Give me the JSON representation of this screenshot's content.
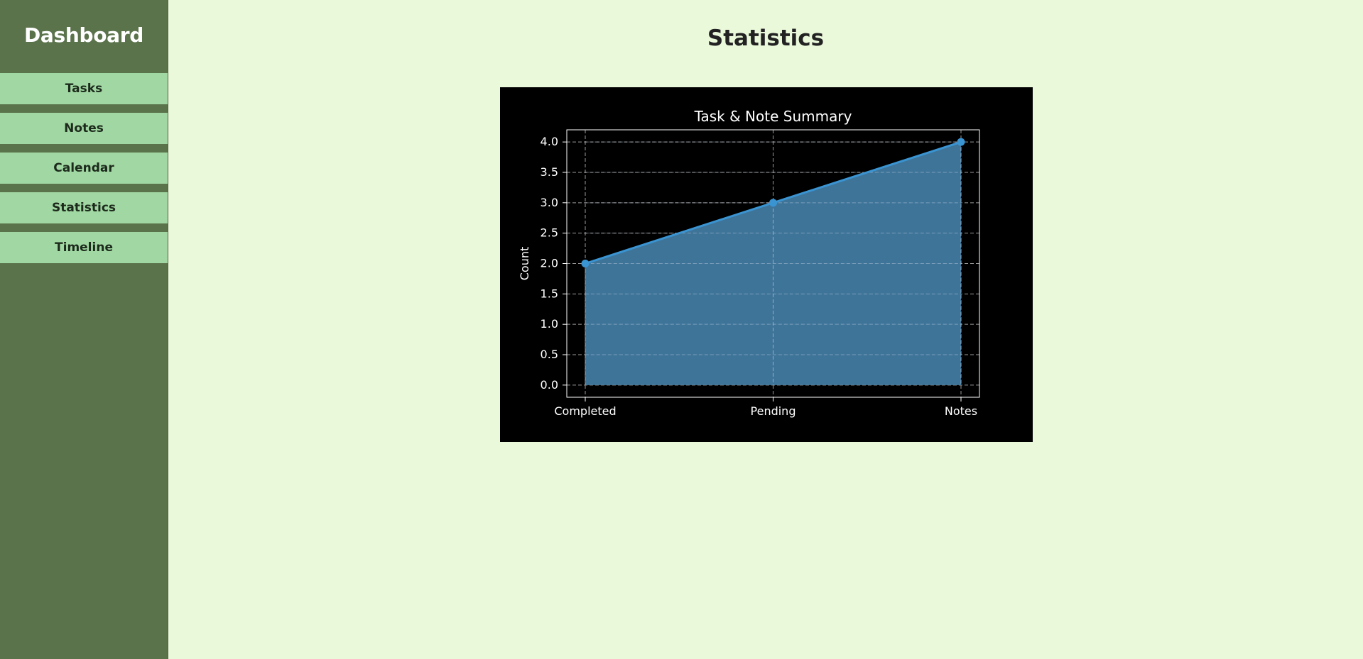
{
  "sidebar": {
    "title": "Dashboard",
    "items": [
      {
        "label": "Tasks",
        "key": "tasks"
      },
      {
        "label": "Notes",
        "key": "notes"
      },
      {
        "label": "Calendar",
        "key": "calendar"
      },
      {
        "label": "Statistics",
        "key": "statistics"
      },
      {
        "label": "Timeline",
        "key": "timeline"
      }
    ]
  },
  "main": {
    "title": "Statistics"
  },
  "colors": {
    "sidebar_bg": "#5b734b",
    "nav_item_bg": "#a1d7a2",
    "page_bg": "#ebf9db",
    "chart_bg": "#000000",
    "series_line": "#3a94d2",
    "series_fill": "#427aa1"
  },
  "chart_data": {
    "type": "area",
    "title": "Task & Note Summary",
    "xlabel": "",
    "ylabel": "Count",
    "categories": [
      "Completed",
      "Pending",
      "Notes"
    ],
    "values": [
      2,
      3,
      4
    ],
    "ylim": [
      -0.2,
      4.2
    ],
    "yticks": [
      0.0,
      0.5,
      1.0,
      1.5,
      2.0,
      2.5,
      3.0,
      3.5,
      4.0
    ],
    "grid": true,
    "markers": true,
    "legend": "none"
  }
}
